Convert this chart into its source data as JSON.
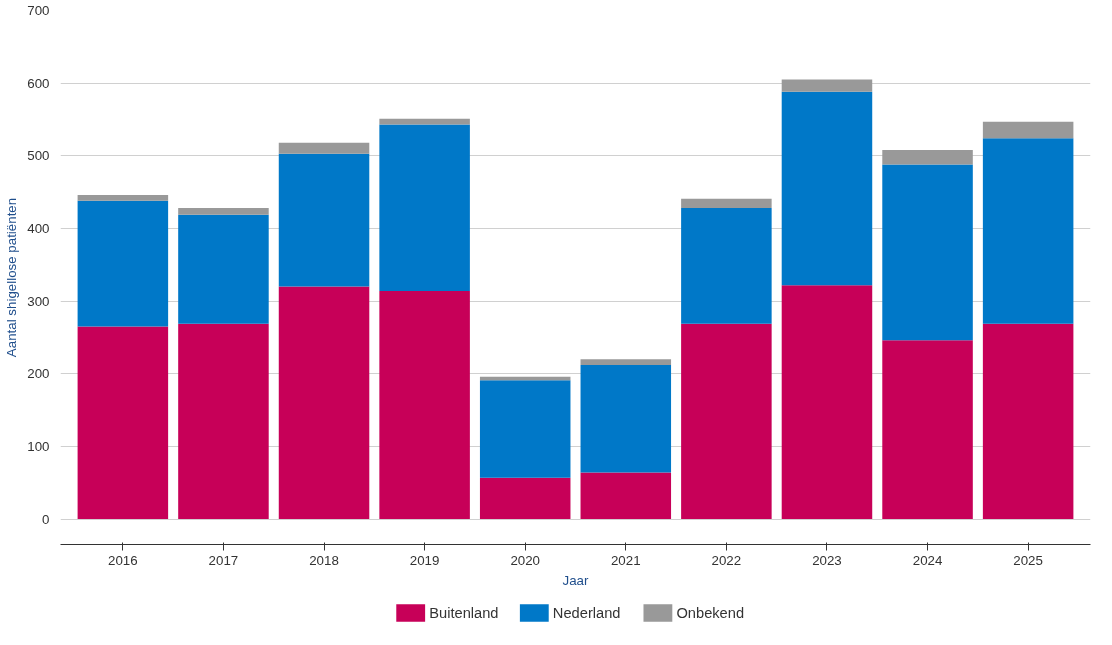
{
  "chart_data": {
    "type": "bar",
    "stacked": true,
    "xlabel": "Jaar",
    "ylabel": "Aantal shigellose patiënten",
    "categories": [
      "2016",
      "2017",
      "2018",
      "2019",
      "2020",
      "2021",
      "2022",
      "2023",
      "2024",
      "2025"
    ],
    "series": [
      {
        "name": "Buitenland",
        "color": "#c70058",
        "values": [
          265,
          269,
          320,
          314,
          57,
          64,
          269,
          322,
          246,
          269
        ]
      },
      {
        "name": "Nederland",
        "color": "#0078c8",
        "values": [
          173,
          150,
          183,
          229,
          134,
          148,
          159,
          266,
          242,
          255
        ]
      },
      {
        "name": "Onbekend",
        "color": "#999999",
        "values": [
          8,
          9,
          15,
          8,
          5,
          8,
          13,
          17,
          20,
          23
        ]
      }
    ],
    "ylim": [
      -35,
      700
    ],
    "yticks": [
      0,
      100,
      200,
      300,
      400,
      500,
      600,
      700
    ],
    "grid": "y",
    "legend": "bottom"
  }
}
